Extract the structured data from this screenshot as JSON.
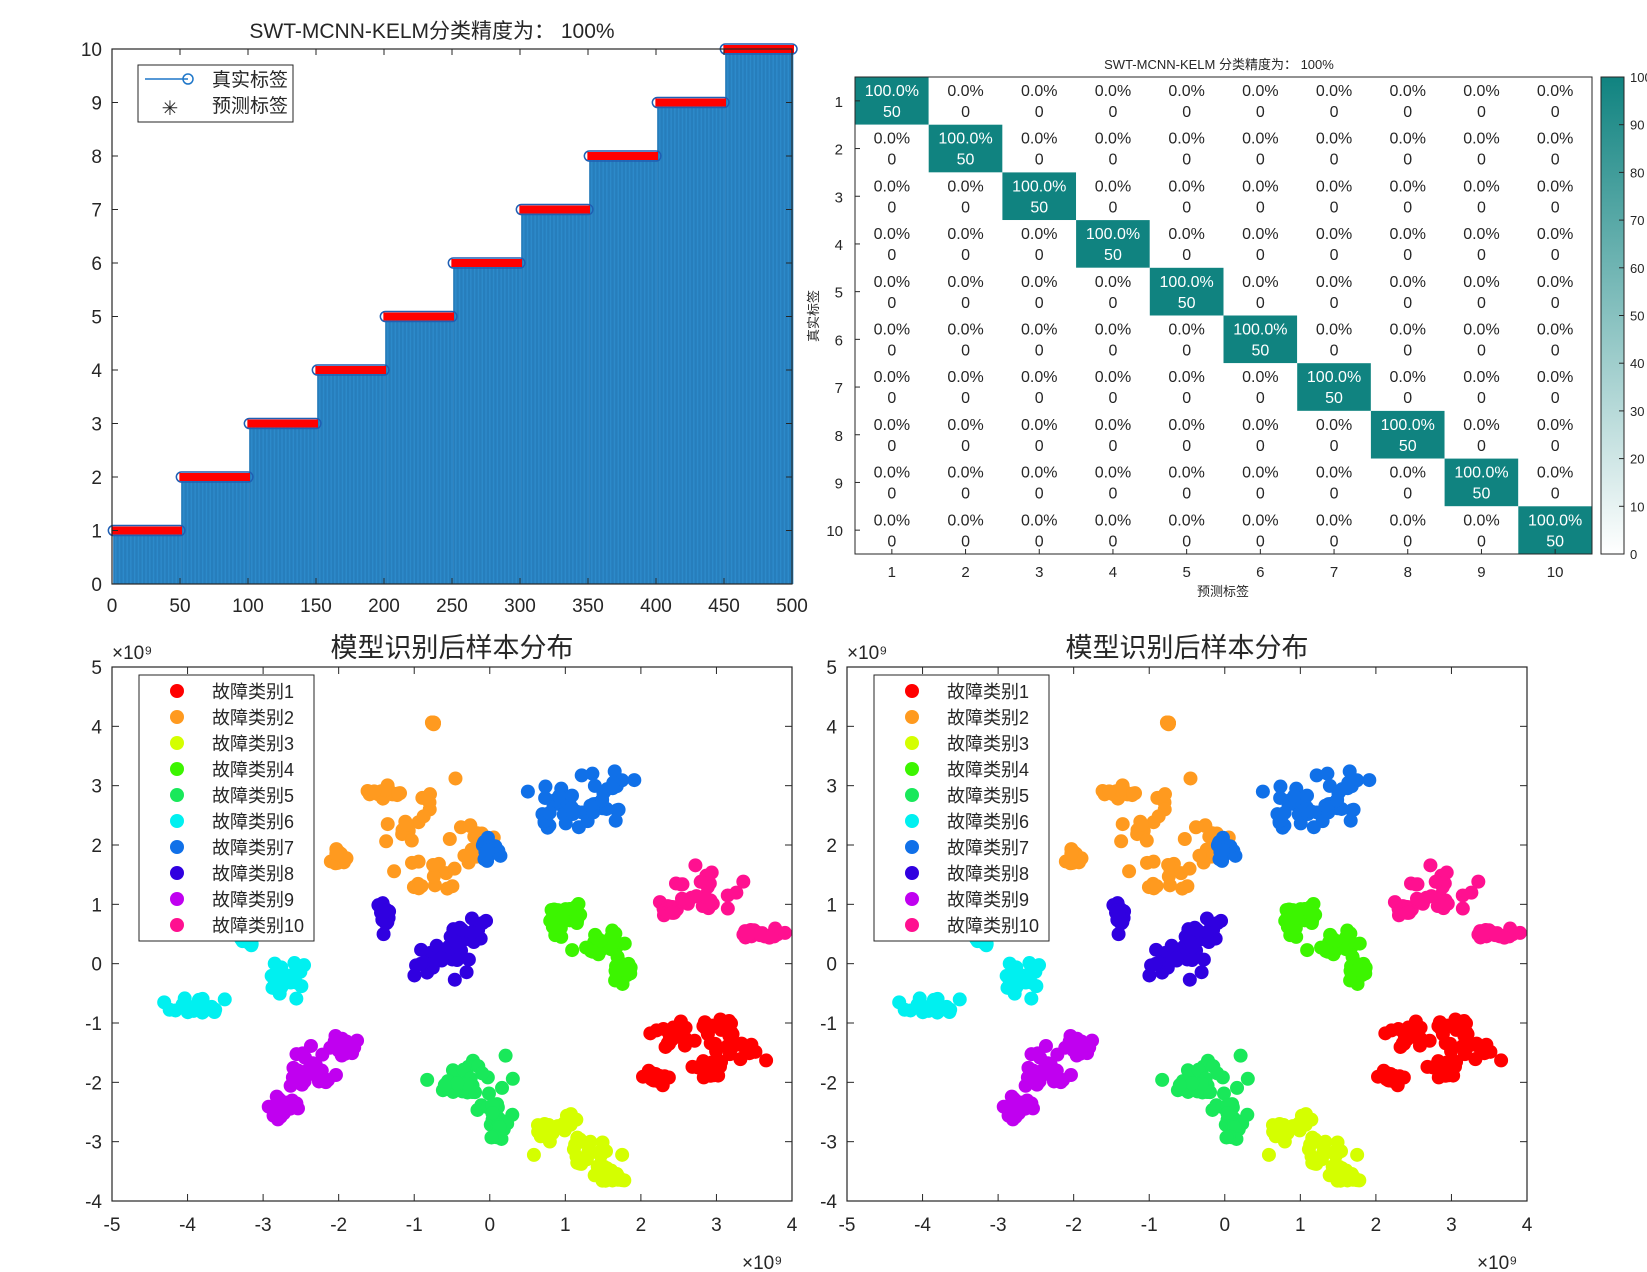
{
  "chart_data": [
    {
      "type": "bar",
      "title": "SWT-MCNN-KELM分类精度为： 100%",
      "xlim": [
        0,
        500
      ],
      "ylim": [
        0,
        10
      ],
      "xticks": [
        "0",
        "50",
        "100",
        "150",
        "200",
        "250",
        "300",
        "350",
        "400",
        "450",
        "500"
      ],
      "yticks": [
        "0",
        "1",
        "2",
        "3",
        "4",
        "5",
        "6",
        "7",
        "8",
        "9",
        "10"
      ],
      "n_samples": 500,
      "samples_per_class": 50,
      "true_labels": [
        1,
        2,
        3,
        4,
        5,
        6,
        7,
        8,
        9,
        10
      ],
      "predicted_labels": [
        1,
        2,
        3,
        4,
        5,
        6,
        7,
        8,
        9,
        10
      ],
      "legend": {
        "entries": [
          "真实标签",
          "预测标签"
        ],
        "location": "top-left"
      },
      "colors": {
        "bar": "#2f8fd0",
        "stem": "#1f77c9",
        "marker_edge": "#1f5fb4",
        "predicted": "#ff0000"
      }
    },
    {
      "type": "heatmap",
      "title": "SWT-MCNN-KELM 分类精度为： 100%",
      "xlabel": "预测标签",
      "ylabel": "真实标签",
      "categories": [
        "1",
        "2",
        "3",
        "4",
        "5",
        "6",
        "7",
        "8",
        "9",
        "10"
      ],
      "diag_count": 50,
      "diag_percent": "100.0%",
      "off_percent": "0.0%",
      "off_count": "0",
      "colorbar": {
        "ticks": [
          "0",
          "10",
          "20",
          "30",
          "40",
          "50",
          "60",
          "70",
          "80",
          "90",
          "100"
        ],
        "range": [
          0,
          100
        ]
      },
      "colors": {
        "diag": "#108380",
        "low": "#ffffff"
      }
    },
    {
      "type": "scatter",
      "title": "模型识别后样本分布",
      "xlim": [
        -5,
        4
      ],
      "ylim": [
        -4,
        5
      ],
      "xticks": [
        "-5",
        "-4",
        "-3",
        "-2",
        "-1",
        "0",
        "1",
        "2",
        "3",
        "4"
      ],
      "yticks": [
        "-4",
        "-3",
        "-2",
        "-1",
        "0",
        "1",
        "2",
        "3",
        "4",
        "5"
      ],
      "exponent": "×10⁹",
      "series": [
        {
          "name": "故障类别1",
          "color": "#ff0000",
          "clusters": [
            [
              2.4,
              -1.2,
              0.25,
              0.18
            ],
            [
              3.0,
              -1.1,
              0.3,
              0.25
            ],
            [
              3.3,
              -1.5,
              0.35,
              0.2
            ],
            [
              2.2,
              -1.9,
              0.15,
              0.1
            ],
            [
              2.9,
              -1.8,
              0.2,
              0.2
            ]
          ]
        },
        {
          "name": "故障类别2",
          "color": "#ff9a1f",
          "clusters": [
            [
              -1.0,
              2.4,
              0.55,
              0.5
            ],
            [
              -1.4,
              2.9,
              0.25,
              0.08
            ],
            [
              -0.8,
              1.5,
              0.45,
              0.3
            ],
            [
              -0.2,
              2.0,
              0.25,
              0.4
            ],
            [
              -2.0,
              1.8,
              0.1,
              0.15
            ],
            [
              -0.75,
              4.05,
              0.02,
              0.02
            ]
          ]
        },
        {
          "name": "故障类别3",
          "color": "#d4ff00",
          "clusters": [
            [
              1.35,
              -3.2,
              0.3,
              0.35
            ],
            [
              0.9,
              -2.7,
              0.35,
              0.25
            ],
            [
              1.6,
              -3.6,
              0.2,
              0.1
            ]
          ]
        },
        {
          "name": "故障类别4",
          "color": "#3cf500",
          "clusters": [
            [
              1.0,
              0.8,
              0.25,
              0.25
            ],
            [
              1.5,
              0.35,
              0.25,
              0.2
            ],
            [
              1.75,
              -0.1,
              0.15,
              0.25
            ]
          ]
        },
        {
          "name": "故障类别5",
          "color": "#19e85a",
          "clusters": [
            [
              -0.3,
              -2.0,
              0.4,
              0.35
            ],
            [
              0.1,
              -2.7,
              0.12,
              0.4
            ]
          ]
        },
        {
          "name": "故障类别6",
          "color": "#00f0f0",
          "clusters": [
            [
              -2.7,
              -0.2,
              0.35,
              0.3
            ],
            [
              -3.9,
              -0.7,
              0.3,
              0.18
            ],
            [
              -3.2,
              0.4,
              0.2,
              0.1
            ]
          ]
        },
        {
          "name": "故障类别7",
          "color": "#1070e8",
          "clusters": [
            [
              0.9,
              2.6,
              0.4,
              0.4
            ],
            [
              1.5,
              2.8,
              0.3,
              0.4
            ],
            [
              0.0,
              1.9,
              0.1,
              0.2
            ]
          ]
        },
        {
          "name": "故障类别8",
          "color": "#3000e0",
          "clusters": [
            [
              -0.7,
              0.1,
              0.35,
              0.25
            ],
            [
              -0.3,
              0.5,
              0.25,
              0.2
            ],
            [
              -1.4,
              0.8,
              0.06,
              0.2
            ]
          ]
        },
        {
          "name": "故障类别9",
          "color": "#c000f0",
          "clusters": [
            [
              -2.4,
              -1.8,
              0.3,
              0.35
            ],
            [
              -2.7,
              -2.4,
              0.15,
              0.25
            ],
            [
              -1.9,
              -1.4,
              0.2,
              0.15
            ]
          ]
        },
        {
          "name": "故障类别10",
          "color": "#ff1090",
          "clusters": [
            [
              2.9,
              1.2,
              0.45,
              0.35
            ],
            [
              3.6,
              0.5,
              0.3,
              0.08
            ],
            [
              2.4,
              0.9,
              0.1,
              0.06
            ]
          ]
        }
      ]
    },
    {
      "type": "scatter",
      "title": "模型识别后样本分布",
      "xlim": [
        -5,
        4
      ],
      "ylim": [
        -4,
        5
      ],
      "xticks": [
        "-5",
        "-4",
        "-3",
        "-2",
        "-1",
        "0",
        "1",
        "2",
        "3",
        "4"
      ],
      "yticks": [
        "-4",
        "-3",
        "-2",
        "-1",
        "0",
        "1",
        "2",
        "3",
        "4",
        "5"
      ],
      "exponent": "×10⁹",
      "series_ref": "same as previous scatter"
    }
  ]
}
